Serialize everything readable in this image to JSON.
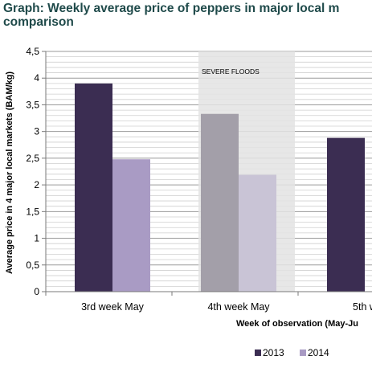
{
  "title": {
    "line1": "Graph: Weekly average price of peppers in major local m",
    "line2": "comparison"
  },
  "chart_data": {
    "type": "bar",
    "categories": [
      "3rd week May",
      "4th week May",
      "5th w"
    ],
    "series": [
      {
        "name": "2013",
        "values": [
          3.9,
          null,
          2.88
        ],
        "color": "#3b2d52"
      },
      {
        "name": "2014",
        "values": [
          2.48,
          null,
          null
        ],
        "color": "#a99bc4"
      }
    ],
    "flood_week_values": {
      "2013": 3.33,
      "2014": 2.19,
      "color_2013": "#a39fa9",
      "color_2014": "#c9c4d6"
    },
    "highlight": {
      "category": "4th week May",
      "label": "SEVERE FLOODS",
      "color": "#e3e3e3"
    },
    "ylabel": "Average price in 4 major local markets (BAM/kg)",
    "xlabel": "Week of observation (May-Ju",
    "ylim": [
      0,
      4.5
    ],
    "yticks": [
      "0",
      "0,5",
      "1",
      "1,5",
      "2",
      "2,5",
      "3",
      "3,5",
      "4",
      "4,5"
    ],
    "grid": true,
    "legend": {
      "placement": "bottom-right",
      "entries": [
        "2013",
        "2014"
      ]
    }
  }
}
